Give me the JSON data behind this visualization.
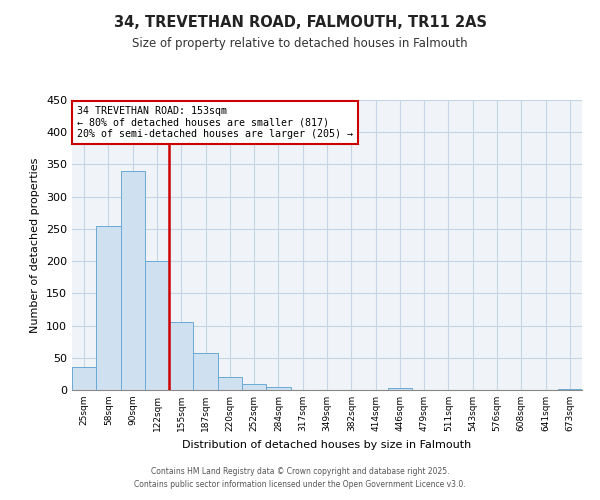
{
  "title": "34, TREVETHAN ROAD, FALMOUTH, TR11 2AS",
  "subtitle": "Size of property relative to detached houses in Falmouth",
  "xlabel": "Distribution of detached houses by size in Falmouth",
  "ylabel": "Number of detached properties",
  "bar_labels": [
    "25sqm",
    "58sqm",
    "90sqm",
    "122sqm",
    "155sqm",
    "187sqm",
    "220sqm",
    "252sqm",
    "284sqm",
    "317sqm",
    "349sqm",
    "382sqm",
    "414sqm",
    "446sqm",
    "479sqm",
    "511sqm",
    "543sqm",
    "576sqm",
    "608sqm",
    "641sqm",
    "673sqm"
  ],
  "bar_values": [
    36,
    255,
    340,
    200,
    105,
    57,
    20,
    10,
    4,
    0,
    0,
    0,
    0,
    3,
    0,
    0,
    0,
    0,
    0,
    0,
    2
  ],
  "bar_color": "#cfe0f0",
  "bar_edge_color": "#6aaad4",
  "vline_x_pos": 3.5,
  "vline_color": "#cc0000",
  "annotation_line1": "34 TREVETHAN ROAD: 153sqm",
  "annotation_line2": "← 80% of detached houses are smaller (817)",
  "annotation_line3": "20% of semi-detached houses are larger (205) →",
  "annotation_box_edge_color": "#cc0000",
  "ylim": [
    0,
    450
  ],
  "yticks": [
    0,
    50,
    100,
    150,
    200,
    250,
    300,
    350,
    400,
    450
  ],
  "footer_line1": "Contains HM Land Registry data © Crown copyright and database right 2025.",
  "footer_line2": "Contains public sector information licensed under the Open Government Licence v3.0.",
  "background_color": "#ffffff",
  "plot_bg_color": "#f0f4f8",
  "grid_color": "#c5d5e5"
}
